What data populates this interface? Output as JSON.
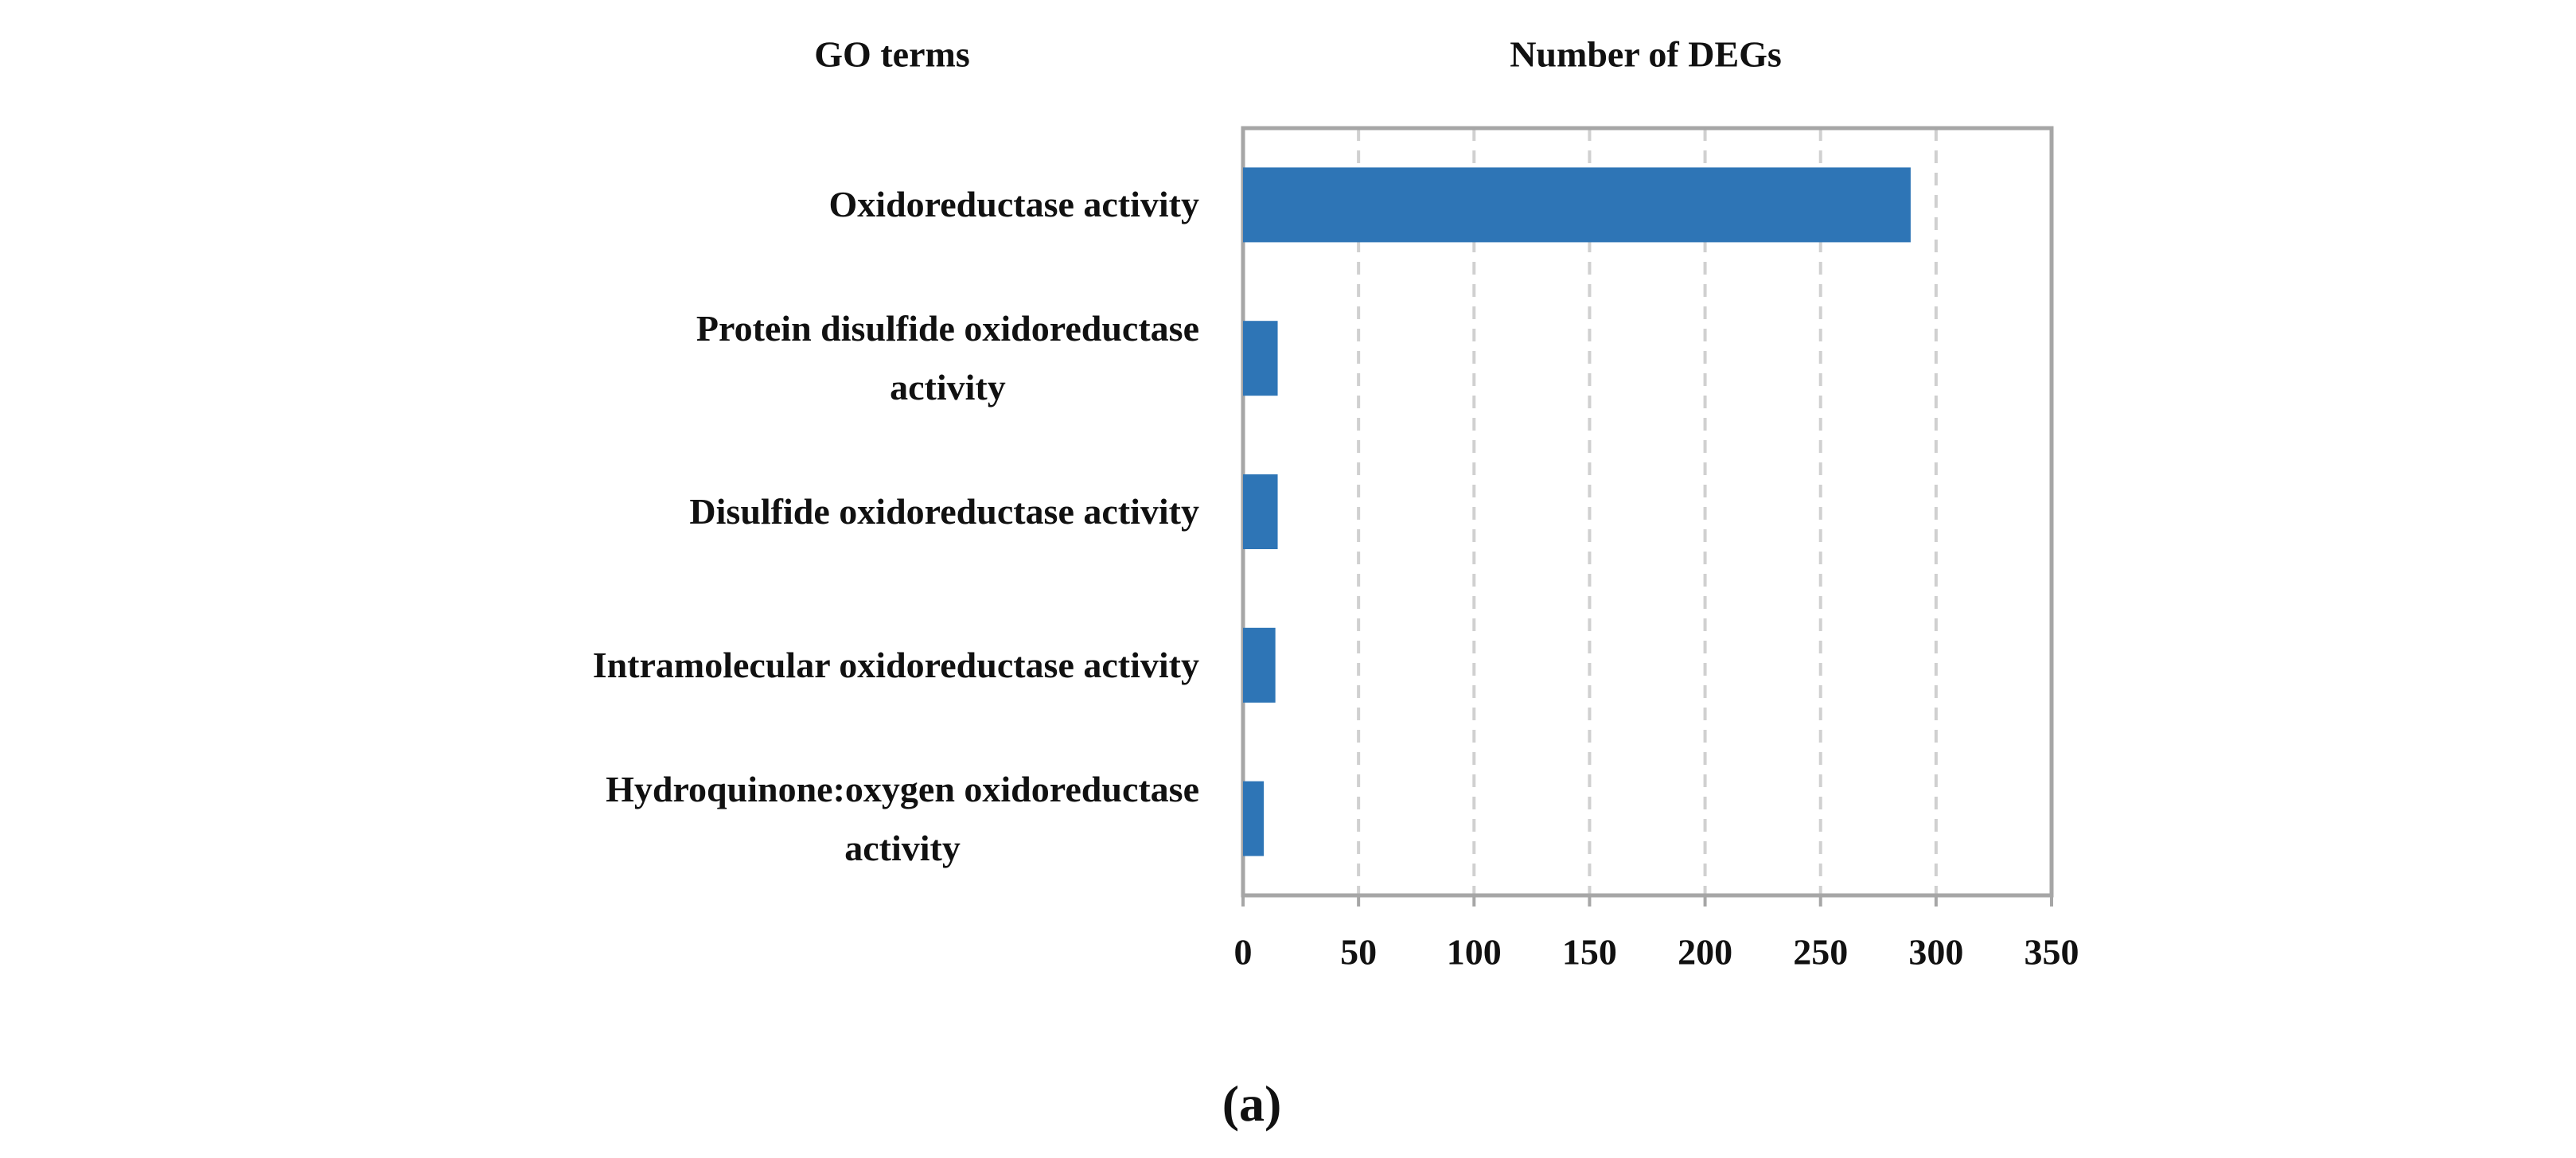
{
  "chart_data": {
    "type": "bar",
    "orientation": "horizontal",
    "category_header": "GO terms",
    "x_label": "Number of DEGs",
    "categories": [
      "Oxidoreductase activity",
      "Protein disulfide oxidoreductase\nactivity",
      "Disulfide oxidoreductase activity",
      "Intramolecular oxidoreductase activity",
      "Hydroquinone:oxygen oxidoreductase\nactivity"
    ],
    "values": [
      289,
      15,
      15,
      14,
      9
    ],
    "color": "#2e75b6",
    "xlim": [
      0,
      350
    ],
    "xticks": [
      0,
      50,
      100,
      150,
      200,
      250,
      300,
      350
    ],
    "grid": true,
    "caption": "(a)"
  }
}
